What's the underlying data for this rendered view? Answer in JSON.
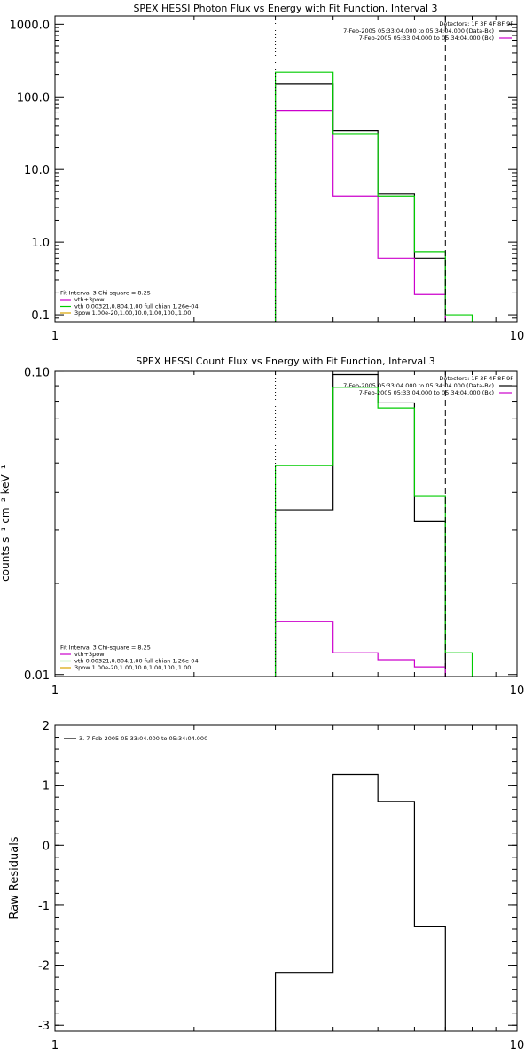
{
  "colors": {
    "black": "#000000",
    "magenta": "#cc00cc",
    "green": "#00cc00",
    "orange": "#d9a300"
  },
  "chart_data": [
    {
      "type": "line",
      "title": "SPEX HESSI Photon Flux vs Energy with Fit Function, Interval 3",
      "xlabel": "",
      "ylabel": "",
      "xscale": "log",
      "yscale": "log",
      "xlim": [
        1,
        10
      ],
      "ylim": [
        0.08,
        1300
      ],
      "x_ticks": [
        "1",
        "10"
      ],
      "y_ticks": [
        "1000.0",
        "100.0",
        "10.0",
        "1.0",
        "0.1"
      ],
      "y_tick_values": [
        1000,
        100,
        10,
        1,
        0.1
      ],
      "vlines": [
        {
          "x": 3.0,
          "style": "dotted"
        },
        {
          "x": 7.0,
          "style": "dashed"
        }
      ],
      "legend_top_right": [
        {
          "text": "Detectors: 1F 3F 4F 8F 9F",
          "color": "black"
        },
        {
          "text": "7-Feb-2005 05:33:04.000 to 05:34:04.000 (Data-Bk)",
          "color": "black"
        },
        {
          "text": "7-Feb-2005 05:33:04.000 to 05:34:04.000 (Bk)",
          "color": "magenta"
        }
      ],
      "legend_bottom_left": [
        {
          "text": "Fit Interval 3   Chi-square = 8.25",
          "color": "black"
        },
        {
          "text": "vth+3pow",
          "color": "magenta"
        },
        {
          "text": "vth 0.00321,0.804,1.00  full chian 1.26e-04",
          "color": "green"
        },
        {
          "text": "3pow 1.00e-20,1.00,10.0,1.00,100.,1.00",
          "color": "orange"
        }
      ],
      "series": [
        {
          "color": "black",
          "edges": [
            3.0,
            4.0,
            5.0,
            6.0,
            7.0
          ],
          "values": [
            150,
            34,
            4.6,
            0.6
          ]
        },
        {
          "color": "magenta",
          "edges": [
            3.0,
            4.0,
            5.0,
            6.0,
            7.0
          ],
          "values": [
            65,
            4.3,
            0.6,
            0.19
          ]
        },
        {
          "color": "green",
          "edges": [
            3.0,
            4.0,
            5.0,
            6.0,
            7.0,
            8.0
          ],
          "values": [
            220,
            31,
            4.3,
            0.74,
            0.1
          ]
        }
      ]
    },
    {
      "type": "line",
      "title": "SPEX HESSI Count Flux vs Energy with Fit Function, Interval 3",
      "xlabel": "",
      "ylabel": "counts s⁻¹ cm⁻² keV⁻¹",
      "xscale": "log",
      "yscale": "log",
      "xlim": [
        1,
        10
      ],
      "ylim": [
        0.00985,
        0.101
      ],
      "x_ticks": [
        "1",
        "10"
      ],
      "y_ticks": [
        "0.10",
        "0.01"
      ],
      "y_tick_values": [
        0.1,
        0.01
      ],
      "vlines": [
        {
          "x": 3.0,
          "style": "dotted"
        },
        {
          "x": 7.0,
          "style": "dashed"
        }
      ],
      "legend_top_right": [
        {
          "text": "Detectors: 1F 3F 4F 8F 9F",
          "color": "black"
        },
        {
          "text": "7-Feb-2005 05:33:04.000 to 05:34:04.000 (Data-Bk)",
          "color": "black"
        },
        {
          "text": "7-Feb-2005 05:33:04.000 to 05:34:04.000 (Bk)",
          "color": "magenta"
        }
      ],
      "legend_bottom_left": [
        {
          "text": "Fit Interval 3   Chi-square = 8.25",
          "color": "black"
        },
        {
          "text": "vth+3pow",
          "color": "magenta"
        },
        {
          "text": "vth 0.00321,0.804,1.00  full chian 1.26e-04",
          "color": "green"
        },
        {
          "text": "3pow 1.00e-20,1.00,10.0,1.00,100.,1.00",
          "color": "orange"
        }
      ],
      "series": [
        {
          "color": "black",
          "edges": [
            3.0,
            4.0,
            5.0,
            6.0,
            7.0
          ],
          "values": [
            0.035,
            0.098,
            0.079,
            0.032
          ]
        },
        {
          "color": "magenta",
          "edges": [
            3.0,
            4.0,
            5.0,
            6.0,
            7.0
          ],
          "values": [
            0.015,
            0.0118,
            0.0112,
            0.0106
          ]
        },
        {
          "color": "green",
          "edges": [
            3.0,
            4.0,
            5.0,
            6.0,
            7.0,
            8.0
          ],
          "values": [
            0.049,
            0.089,
            0.076,
            0.039,
            0.0118
          ]
        }
      ]
    },
    {
      "type": "line",
      "title": "",
      "xlabel": "",
      "ylabel": "Raw Residuals",
      "xscale": "log",
      "yscale": "linear",
      "xlim": [
        1,
        10
      ],
      "ylim": [
        -3.1,
        2.0
      ],
      "x_ticks": [
        "1",
        "10"
      ],
      "y_ticks": [
        "2",
        "1",
        "0",
        "-1",
        "-2",
        "-3"
      ],
      "y_tick_values": [
        2,
        1,
        0,
        -1,
        -2,
        -3
      ],
      "vlines": [],
      "legend_top_left": [
        {
          "text": "3.  7-Feb-2005 05:33:04.000 to 05:34:04.000",
          "color": "black"
        }
      ],
      "series": [
        {
          "color": "black",
          "edges": [
            3.0,
            4.0,
            5.0,
            6.0,
            7.0
          ],
          "values": [
            -2.12,
            1.18,
            0.73,
            -1.35
          ],
          "drop_to_axis": true
        }
      ]
    }
  ]
}
